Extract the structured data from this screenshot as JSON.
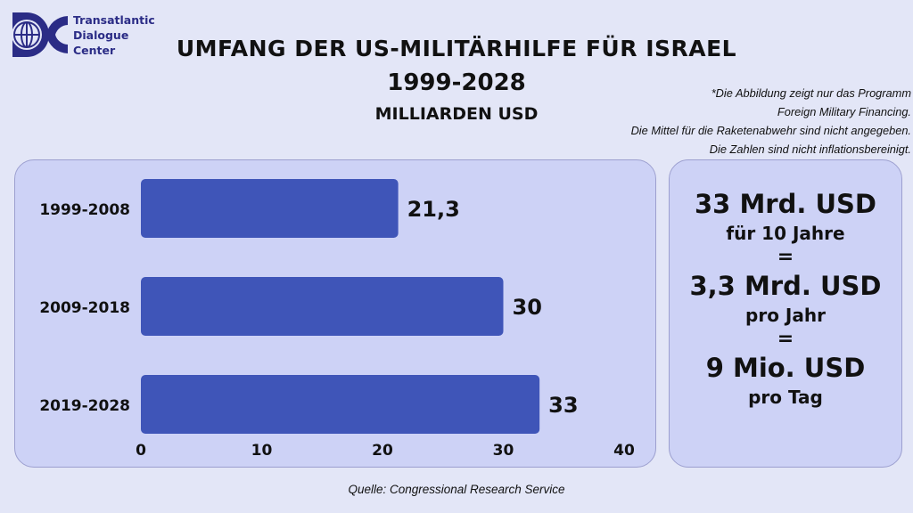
{
  "logo": {
    "icon": "tdc-globe-logo",
    "lines": [
      "Transatlantic",
      "Dialogue",
      "Center"
    ],
    "color": "#2b2c86"
  },
  "title": {
    "line1": "UMFANG DER US-MILITÄRHILFE FÜR ISRAEL",
    "line2": "1999-2028",
    "line3": "MILLIARDEN USD"
  },
  "note": [
    "*Die Abbildung zeigt nur das Programm",
    "Foreign Military Financing.",
    "Die Mittel für die Raketenabwehr sind nicht angegeben.",
    "Die Zahlen sind nicht inflationsbereinigt."
  ],
  "chart_data": {
    "type": "bar",
    "orientation": "horizontal",
    "categories": [
      "1999-2008",
      "2009-2018",
      "2019-2028"
    ],
    "values": [
      21.3,
      30,
      33
    ],
    "value_labels": [
      "21,3",
      "30",
      "33"
    ],
    "xlim": [
      0,
      40
    ],
    "x_ticks": [
      0,
      10,
      20,
      30,
      40
    ],
    "bar_color": "#3f55b8",
    "grid": false
  },
  "info": {
    "line1": "33 Mrd. USD",
    "line2": "für 10 Jahre",
    "eq1": "=",
    "line3": "3,3 Mrd. USD",
    "line4": "pro Jahr",
    "eq2": "=",
    "line5": "9 Mio. USD",
    "line6": "pro Tag"
  },
  "source": "Quelle: Congressional Research Service"
}
